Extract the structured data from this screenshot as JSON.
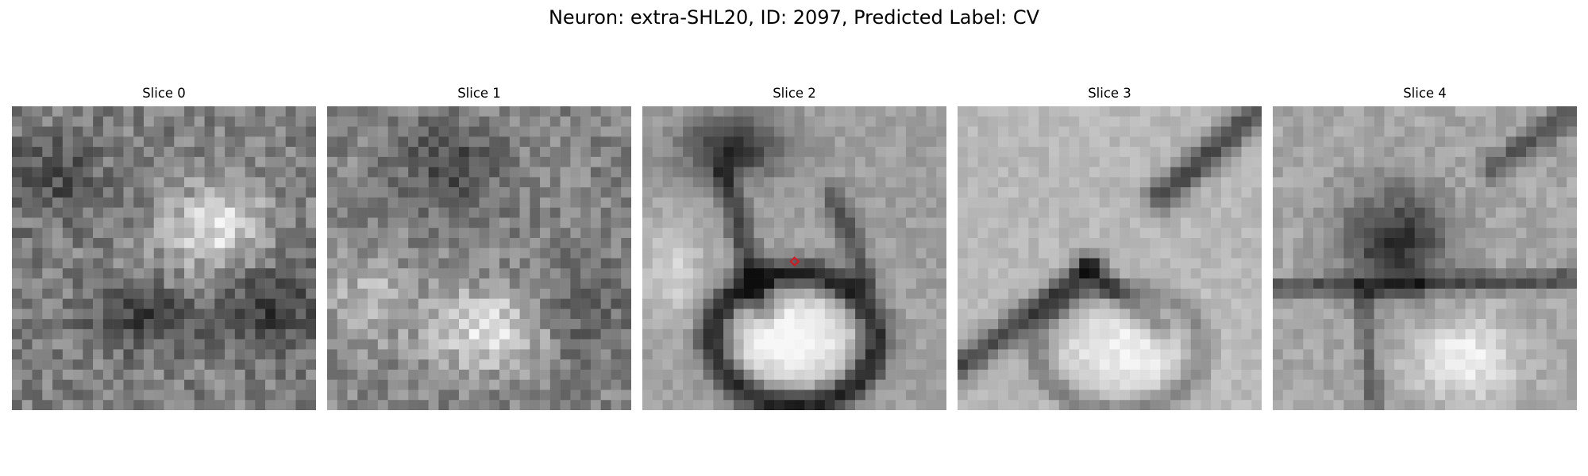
{
  "figure": {
    "title": "Neuron: extra-SHL20, ID: 2097, Predicted Label: CV"
  },
  "slices": [
    {
      "label": "Slice 0",
      "has_marker": false
    },
    {
      "label": "Slice 1",
      "has_marker": false
    },
    {
      "label": "Slice 2",
      "has_marker": true
    },
    {
      "label": "Slice 3",
      "has_marker": false
    },
    {
      "label": "Slice 4",
      "has_marker": false
    }
  ],
  "colors": {
    "marker": "#e0141e",
    "background": "#ffffff"
  }
}
